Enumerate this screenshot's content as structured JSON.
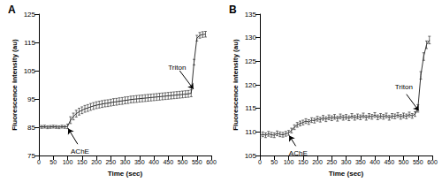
{
  "chart_data": [
    {
      "type": "line",
      "title": "A",
      "xlabel": "Time (sec)",
      "ylabel": "Fluorescence intensity (au)",
      "xlim": [
        0,
        600
      ],
      "xticks": [
        0,
        50,
        100,
        150,
        200,
        250,
        300,
        350,
        400,
        450,
        500,
        550,
        600
      ],
      "ylim": [
        75,
        125
      ],
      "yticks": [
        75,
        85,
        95,
        105,
        115,
        125
      ],
      "grid": false,
      "x": [
        0,
        10,
        20,
        30,
        40,
        50,
        60,
        70,
        80,
        90,
        100,
        110,
        120,
        130,
        140,
        150,
        160,
        170,
        180,
        190,
        200,
        210,
        220,
        230,
        240,
        250,
        260,
        270,
        280,
        290,
        300,
        310,
        320,
        330,
        340,
        350,
        360,
        370,
        380,
        390,
        400,
        410,
        420,
        430,
        440,
        450,
        460,
        470,
        480,
        490,
        500,
        510,
        520,
        530,
        540,
        550,
        560,
        570,
        580
      ],
      "series": [
        {
          "color": "#333333",
          "values": [
            85.2,
            85.1,
            85.2,
            85.0,
            85.1,
            85.2,
            85.1,
            85.0,
            85.2,
            85.1,
            85.3,
            87.5,
            88.8,
            89.8,
            90.5,
            91.0,
            91.5,
            91.8,
            92.2,
            92.5,
            92.8,
            93.0,
            93.2,
            93.4,
            93.5,
            93.7,
            93.9,
            94.0,
            94.2,
            94.3,
            94.5,
            94.6,
            94.8,
            94.9,
            95.0,
            95.1,
            95.2,
            95.3,
            95.4,
            95.5,
            95.6,
            95.7,
            95.8,
            95.9,
            96.0,
            96.1,
            96.2,
            96.3,
            96.4,
            96.5,
            96.6,
            96.7,
            96.8,
            97.0,
            108.0,
            116.5,
            117.5,
            117.8,
            117.9
          ],
          "errors": [
            0.5,
            0.5,
            0.5,
            0.5,
            0.5,
            0.5,
            0.5,
            0.5,
            0.5,
            0.5,
            0.8,
            1.2,
            1.2,
            1.2,
            1.2,
            1.2,
            1.2,
            1.2,
            1.2,
            1.2,
            1.2,
            1.2,
            1.2,
            1.2,
            1.2,
            1.2,
            1.2,
            1.2,
            1.2,
            1.2,
            1.2,
            1.2,
            1.2,
            1.2,
            1.2,
            1.2,
            1.2,
            1.2,
            1.2,
            1.2,
            1.2,
            1.2,
            1.2,
            1.2,
            1.2,
            1.2,
            1.2,
            1.2,
            1.2,
            1.2,
            1.2,
            1.2,
            1.2,
            1.2,
            1.0,
            1.0,
            1.0,
            1.0,
            1.0
          ]
        }
      ],
      "annotations": [
        {
          "text": "AChE",
          "x": 102,
          "y": 84.5,
          "text_x": 135,
          "text_y": 79
        },
        {
          "text": "Triton",
          "x": 538,
          "y": 98.5,
          "text_x": 490,
          "text_y": 105
        }
      ]
    },
    {
      "type": "line",
      "title": "B",
      "xlabel": "Time (sec)",
      "ylabel": "Fluorescence intensity (au)",
      "xlim": [
        0,
        600
      ],
      "xticks": [
        0,
        50,
        100,
        150,
        200,
        250,
        300,
        350,
        400,
        450,
        500,
        550,
        600
      ],
      "ylim": [
        105,
        135
      ],
      "yticks": [
        105,
        110,
        115,
        120,
        125,
        130,
        135
      ],
      "grid": false,
      "x": [
        0,
        10,
        20,
        30,
        40,
        50,
        60,
        70,
        80,
        90,
        100,
        110,
        120,
        130,
        140,
        150,
        160,
        170,
        180,
        190,
        200,
        210,
        220,
        230,
        240,
        250,
        260,
        270,
        280,
        290,
        300,
        310,
        320,
        330,
        340,
        350,
        360,
        370,
        380,
        390,
        400,
        410,
        420,
        430,
        440,
        450,
        460,
        470,
        480,
        490,
        500,
        510,
        520,
        530,
        540,
        550,
        560,
        570,
        580,
        590
      ],
      "series": [
        {
          "color": "#333333",
          "values": [
            109.2,
            109.5,
            109.3,
            109.6,
            109.4,
            109.3,
            109.7,
            109.5,
            109.4,
            109.6,
            109.8,
            110.3,
            111.0,
            111.5,
            111.8,
            112.0,
            112.3,
            112.1,
            112.5,
            112.4,
            112.8,
            112.6,
            113.0,
            112.7,
            113.1,
            112.9,
            113.2,
            112.8,
            113.3,
            113.0,
            113.2,
            112.9,
            113.4,
            113.0,
            113.3,
            113.1,
            113.5,
            113.0,
            113.4,
            113.2,
            113.6,
            113.1,
            113.4,
            113.2,
            113.5,
            113.0,
            113.4,
            113.3,
            113.6,
            113.2,
            113.5,
            113.3,
            113.7,
            113.4,
            113.8,
            115.0,
            122.0,
            126.0,
            128.5,
            129.5
          ],
          "errors": [
            0.5,
            0.5,
            0.5,
            0.5,
            0.5,
            0.5,
            0.5,
            0.5,
            0.5,
            0.5,
            0.5,
            0.5,
            0.5,
            0.5,
            0.5,
            0.5,
            0.5,
            0.5,
            0.5,
            0.5,
            0.5,
            0.5,
            0.5,
            0.5,
            0.5,
            0.5,
            0.5,
            0.5,
            0.5,
            0.5,
            0.5,
            0.5,
            0.5,
            0.5,
            0.5,
            0.5,
            0.5,
            0.5,
            0.5,
            0.5,
            0.5,
            0.5,
            0.5,
            0.5,
            0.5,
            0.5,
            0.5,
            0.5,
            0.5,
            0.5,
            0.5,
            0.5,
            0.5,
            0.5,
            0.5,
            0.8,
            0.8,
            0.8,
            0.8,
            0.8
          ]
        }
      ],
      "annotations": [
        {
          "text": "AChE",
          "x": 102,
          "y": 109.2,
          "text_x": 125,
          "text_y": 107
        },
        {
          "text": "Triton",
          "x": 553,
          "y": 114.5,
          "text_x": 510,
          "text_y": 118
        }
      ]
    }
  ]
}
